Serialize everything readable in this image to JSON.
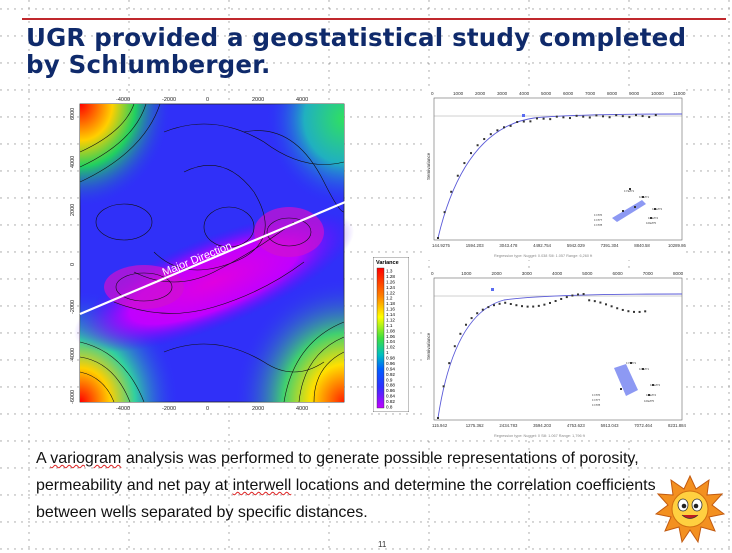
{
  "slide": {
    "title": "UGR provided a geostatistical study completed by Schlumberger.",
    "body_parts": [
      "A ",
      "variogram",
      " analysis was performed to generate possible representations of porosity, permeability and net pay at ",
      "interwell",
      " locations and determine the correlation coefficients between wells separated by specific distances."
    ],
    "page_number": "11"
  },
  "map": {
    "annotation": "Major Direction",
    "x_ticks_top": [
      "-4000",
      "-2000",
      "0",
      "2000",
      "4000"
    ],
    "x_ticks_bottom": [
      "-4000",
      "-2000",
      "0",
      "2000",
      "4000"
    ],
    "y_ticks": [
      "6000",
      "4000",
      "2000",
      "0",
      "-2000",
      "-4000",
      "-6000"
    ]
  },
  "legend": {
    "title": "Variance",
    "values": [
      "1.3",
      "1.28",
      "1.26",
      "1.24",
      "1.22",
      "1.2",
      "1.18",
      "1.16",
      "1.14",
      "1.12",
      "1.1",
      "1.08",
      "1.06",
      "1.04",
      "1.02",
      "1",
      "0.98",
      "0.96",
      "0.94",
      "0.92",
      "0.9",
      "0.88",
      "0.86",
      "0.84",
      "0.82",
      "0.8"
    ]
  },
  "variogram_top": {
    "x_ticks_top": [
      "0",
      "1000",
      "2000",
      "3000",
      "4000",
      "5000",
      "6000",
      "7000",
      "8000",
      "9000",
      "10000",
      "11000"
    ],
    "x_ticks_bottom": [
      "144.9275",
      "1594.203",
      "3043.478",
      "4492.754",
      "5942.029",
      "7391.304",
      "8840.58",
      "10289.86"
    ],
    "y_label": "Semivariance",
    "footer": "Regression type: Nugget: 0.038   Sill: 1.057   Range: 6,260 ft"
  },
  "variogram_bottom": {
    "x_ticks_top": [
      "0",
      "1000",
      "2000",
      "3000",
      "4000",
      "5000",
      "6000",
      "7000",
      "8000"
    ],
    "x_ticks_bottom": [
      "115.942",
      "1275.362",
      "2434.783",
      "3594.203",
      "4753.623",
      "5913.043",
      "7072.464",
      "8231.884"
    ],
    "y_label": "Semivariance",
    "footer": "Regression type: Nugget: 0   Sill: 1.067   Range: 1,796 ft"
  },
  "colors": {
    "title": "#0f2a6b",
    "rule": "#c0282d",
    "map_low": "#2a2aff",
    "map_mid": "#c000ff",
    "map_high": "#ff0000"
  }
}
